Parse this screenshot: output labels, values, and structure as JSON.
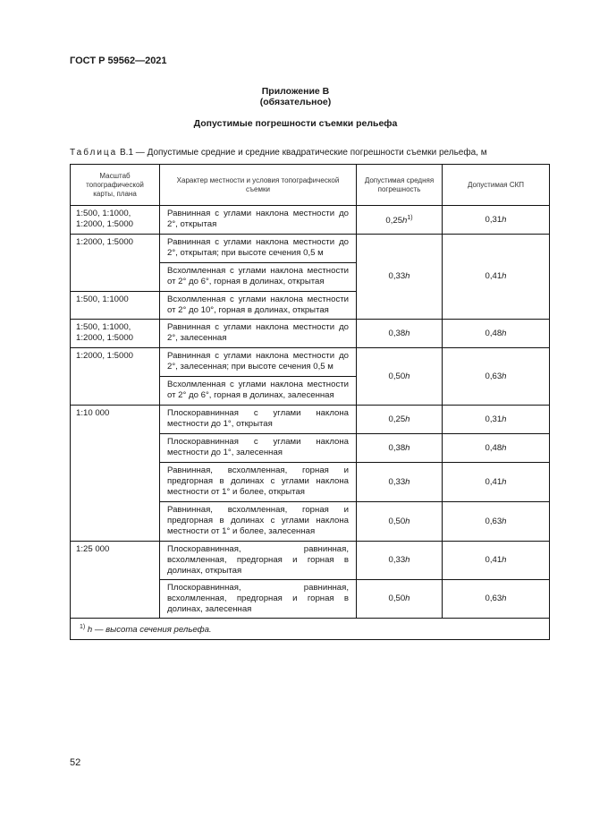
{
  "header": {
    "doc_id": "ГОСТ Р 59562—2021"
  },
  "appendix": {
    "title": "Приложение В",
    "status": "(обязательное)",
    "heading": "Допустимые погрешности съемки рельефа"
  },
  "table": {
    "caption_label": "Таблица",
    "caption_text": "В.1 — Допустимые средние и средние квадратические погрешности съемки рельефа, м",
    "columns": [
      "Масштаб топографической карты, плана",
      "Характер местности и условия топографической съемки",
      "Допустимая средняя погрешность",
      "Допустимая СКП"
    ],
    "scales": [
      "1:500, 1:1000, 1:2000, 1:5000",
      "1:2000, 1:5000",
      "1:500, 1:1000",
      "1:500, 1:1000, 1:2000, 1:5000",
      "1:2000, 1:5000",
      "1:10 000",
      "1:25 000"
    ],
    "descriptions": [
      "Равнинная с углами наклона местности до 2°, открытая",
      "Равнинная с углами наклона местности до 2°, открытая; при высоте сечения 0,5 м",
      "Всхолмленная с углами наклона местности от 2° до 6°, горная в долинах, открытая",
      "Всхолмленная с углами наклона местности от 2° до 10°, горная в долинах, открытая",
      "Равнинная с углами наклона местности до 2°, залесенная",
      "Равнинная с углами наклона местности до 2°, залесенная; при высоте сечения 0,5 м",
      "Всхолмленная с углами наклона местности от 2° до 6°, горная в долинах, залесенная",
      "Плоскоравнинная с углами наклона местности до 1°, открытая",
      "Плоскоравнинная с углами наклона местности до 1°, залесенная",
      "Равнинная, всхолмленная, горная и предгорная в долинах с углами наклона местности от 1° и более, открытая",
      "Равнинная, всхолмленная, горная и предгорная в долинах с углами наклона местности от 1° и более, залесенная",
      "Плоскоравнинная, равнинная, всхолмленная, предгорная и горная в долинах, открытая",
      "Плоскоравнинная, равнинная, всхолмленная, предгорная и горная в долинах, залесенная"
    ],
    "mean_errors": [
      "0,25",
      "0,33",
      "0,38",
      "0,50",
      "0,25",
      "0,38",
      "0,33",
      "0,50",
      "0,33",
      "0,50"
    ],
    "rmse": [
      "0,31",
      "0,41",
      "0,48",
      "0,63",
      "0,31",
      "0,48",
      "0,41",
      "0,63",
      "0,41",
      "0,63"
    ],
    "unit": "h",
    "footnote_mark": "1)",
    "footnote_text": "h — высота сечения рельефа."
  },
  "page_number": "52"
}
